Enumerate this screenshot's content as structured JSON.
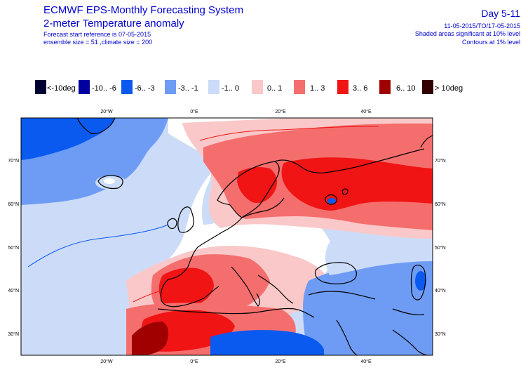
{
  "header": {
    "title": "ECMWF EPS-Monthly Forecasting System",
    "subtitle": "2-meter Temperature anomaly",
    "forecast_ref": "Forecast start reference is 07-05-2015",
    "ensemble": "ensemble size = 51 ,climate size = 200",
    "day_range": "Day 5-11",
    "dates": "11-05-2015/TO/17-05-2015",
    "significance": "Shaded areas significant at 10% level",
    "contours": "Contours at 1% level"
  },
  "legend": {
    "items": [
      {
        "label": "<-10deg",
        "color": "#000033"
      },
      {
        "label": "-10.. -6",
        "color": "#0000a0"
      },
      {
        "label": "-6.. -3",
        "color": "#0a5af0"
      },
      {
        "label": "-3.. -1",
        "color": "#6e9cf5"
      },
      {
        "label": "-1.. 0",
        "color": "#ccdcf8"
      },
      {
        "label": "0.. 1",
        "color": "#fac8c8"
      },
      {
        "label": "1.. 3",
        "color": "#f56e6e"
      },
      {
        "label": "3.. 6",
        "color": "#f01414"
      },
      {
        "label": "6.. 10",
        "color": "#a00000"
      },
      {
        "label": "> 10deg",
        "color": "#330000"
      }
    ]
  },
  "map": {
    "lon_labels": [
      "20°W",
      "0°E",
      "20°E",
      "40°E"
    ],
    "lat_labels": [
      "70°N",
      "60°N",
      "50°N",
      "40°N",
      "30°N"
    ]
  }
}
